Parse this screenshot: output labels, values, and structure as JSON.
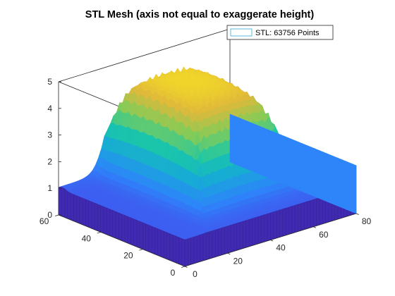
{
  "chart_data": {
    "type": "surface",
    "title": "STL Mesh (axis not equal to exaggerate height)",
    "xlabel": "",
    "ylabel": "",
    "zlabel": "",
    "xlim": [
      0,
      80
    ],
    "ylim": [
      0,
      60
    ],
    "zlim": [
      0,
      5
    ],
    "x_ticks": [
      "0",
      "20",
      "40",
      "60",
      "80"
    ],
    "y_ticks": [
      "0",
      "20",
      "40",
      "60"
    ],
    "z_ticks": [
      "0",
      "1",
      "2",
      "3",
      "4",
      "5"
    ],
    "grid": false,
    "box": true,
    "colormap": "parula",
    "colormap_stops": [
      "#3e26a8",
      "#4746eb",
      "#2e84fa",
      "#17a9d8",
      "#1ac7a8",
      "#81cc59",
      "#e0b93a",
      "#f9e422"
    ],
    "surface": {
      "base_height": 1.0,
      "peak_height": 4.75,
      "plateau_region": {
        "x": [
          22,
          62
        ],
        "y": [
          15,
          57
        ]
      },
      "peak_location": {
        "x": 40,
        "y": 40
      },
      "edge_height_at_x_max": 1.8
    },
    "legend": {
      "position": "top-right",
      "entries": [
        {
          "label": "STL: 63756 Points"
        }
      ]
    }
  }
}
